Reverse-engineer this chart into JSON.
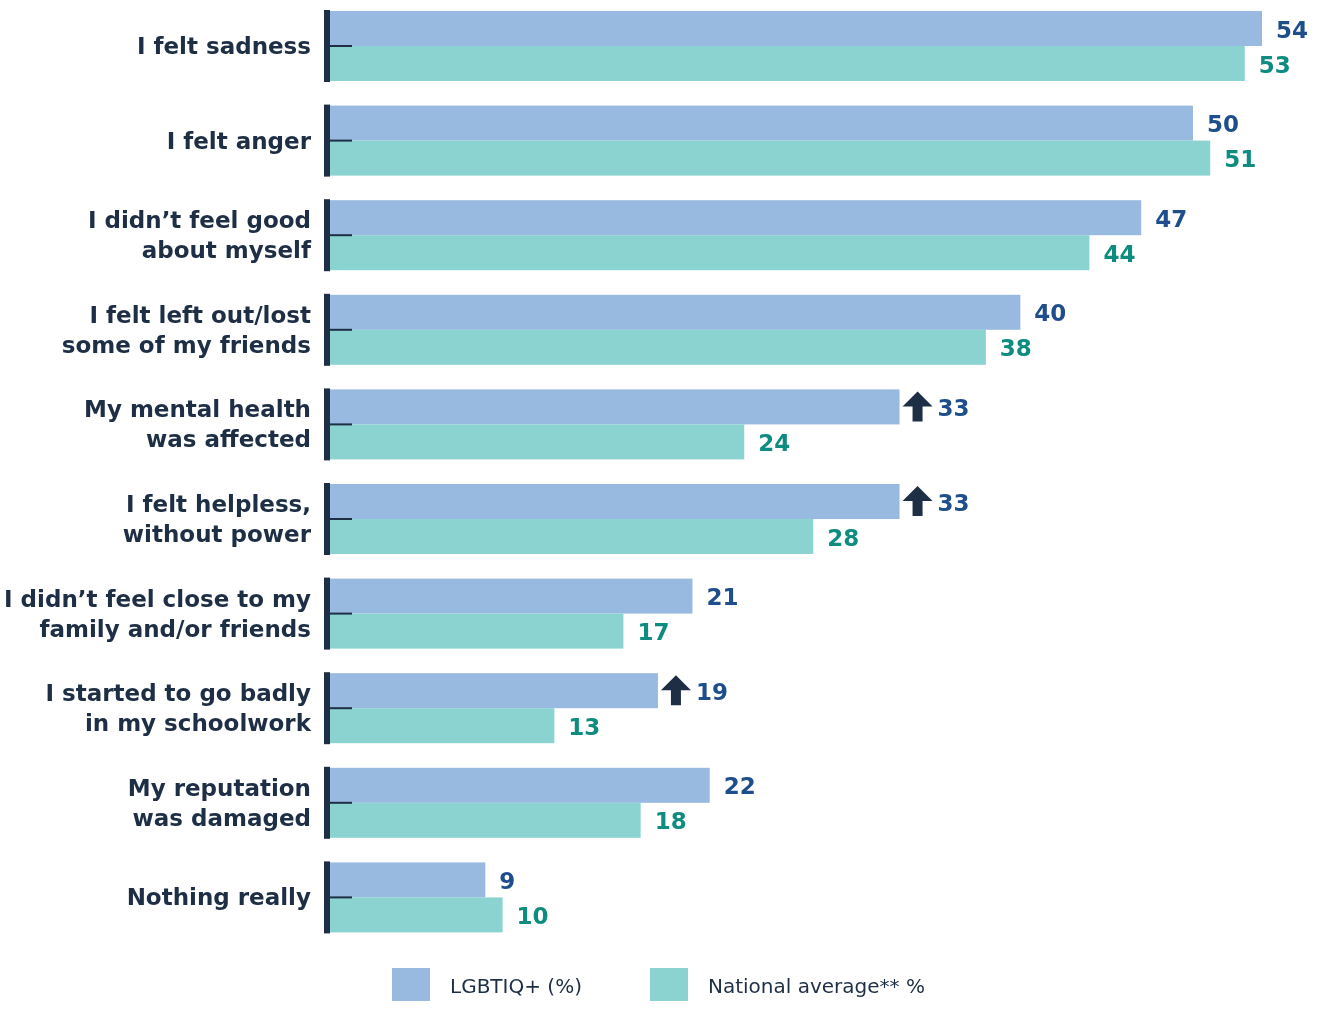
{
  "chart_data": {
    "type": "bar",
    "orientation": "horizontal",
    "data_labels": true,
    "legend": "bottom",
    "categories": [
      "I felt sadness",
      "I felt anger",
      "I didn’t feel good\nabout myself",
      "I felt left out/lost\nsome of my friends",
      "My mental health\nwas affected",
      "I felt helpless,\nwithout power",
      "I didn’t feel close to my\nfamily and/or friends",
      "I started to go badly\nin my schoolwork",
      "My reputation\nwas damaged",
      "Nothing really"
    ],
    "series": [
      {
        "name": "LGBTIQ+ (%)",
        "color": "#98b9e0",
        "values": [
          54,
          50,
          47,
          40,
          33,
          33,
          21,
          19,
          22,
          9
        ]
      },
      {
        "name": "National average** %",
        "color": "#8ad3d0",
        "values": [
          53,
          51,
          44,
          38,
          24,
          28,
          17,
          13,
          18,
          10
        ]
      }
    ]
  }
}
